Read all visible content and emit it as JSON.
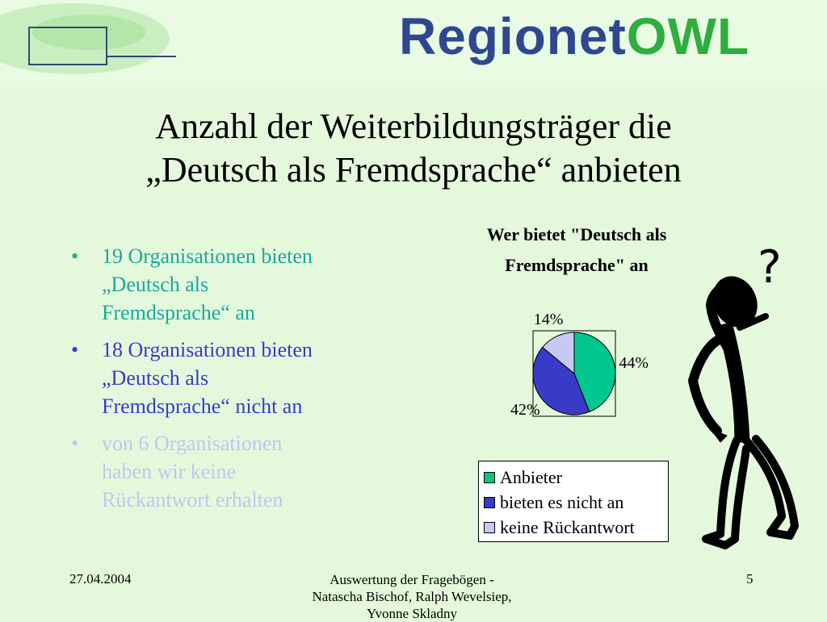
{
  "header": {
    "logo_left_icon": "eye-logo-icon",
    "logo_right_text": "Regionet",
    "logo_right_owl": "OWL"
  },
  "title_line1": "Anzahl der Weiterbildungsträger die",
  "title_line2": "„Deutsch als Fremdsprache“ anbieten",
  "bullets": [
    {
      "bullet": "•",
      "text_lines": [
        "19 Organisationen bieten",
        "„Deutsch als",
        "Fremdsprache“ an"
      ],
      "color": "#1ba79b"
    },
    {
      "bullet": "•",
      "text_lines": [
        "18 Organisationen bieten",
        "„Deutsch als",
        "Fremdsprache“ nicht an"
      ],
      "color": "#3a3ac8"
    },
    {
      "bullet": "•",
      "text_lines": [
        "von 6 Organisationen",
        "haben wir keine",
        "Rückantwort erhalten"
      ],
      "color": "#c4c4f2"
    }
  ],
  "chart_data": {
    "type": "pie",
    "title": "Wer bietet \"Deutsch als Fremdsprache\" an",
    "title_lines": [
      "Wer bietet \"Deutsch als",
      "Fremdsprache\" an"
    ],
    "categories": [
      "Anbieter",
      "bieten es nicht an",
      "keine Rückantwort"
    ],
    "values": [
      44,
      42,
      14
    ],
    "value_labels": [
      "44%",
      "42%",
      "14%"
    ],
    "colors": [
      "#00c78e",
      "#3a3ac8",
      "#c8c8f4"
    ],
    "legend_position": "bottom"
  },
  "figure_icon": "thinking-person-question-mark-icon",
  "figure_question_mark": "?",
  "footer": {
    "date": "27.04.2004",
    "authors_lines": [
      "Auswertung der Fragebögen -",
      "Natascha Bischof, Ralph Wevelsiep,",
      "Yvonne Skladny"
    ],
    "page": "5"
  }
}
